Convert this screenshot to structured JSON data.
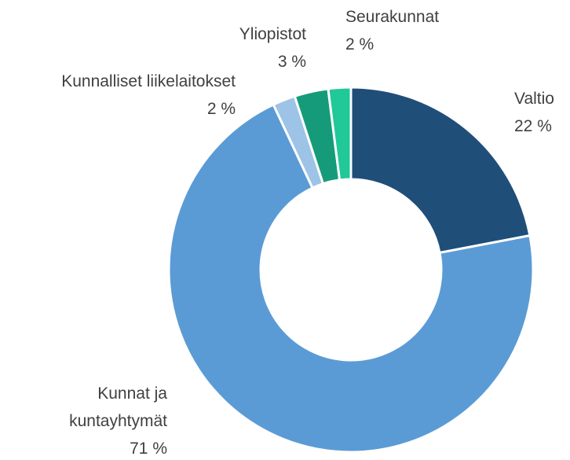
{
  "chart_data": {
    "type": "pie",
    "categories": [
      "Valtio",
      "Kunnat ja kuntayhtymät",
      "Kunnalliset liikelaitokset",
      "Yliopistot",
      "Seurakunnat"
    ],
    "values": [
      22,
      71,
      2,
      3,
      2
    ],
    "value_labels": [
      "22 %",
      "71 %",
      "2 %",
      "3 %",
      "2 %"
    ],
    "colors": [
      "#1f4e79",
      "#5b9bd5",
      "#9dc3e6",
      "#169b7a",
      "#21c898"
    ]
  }
}
